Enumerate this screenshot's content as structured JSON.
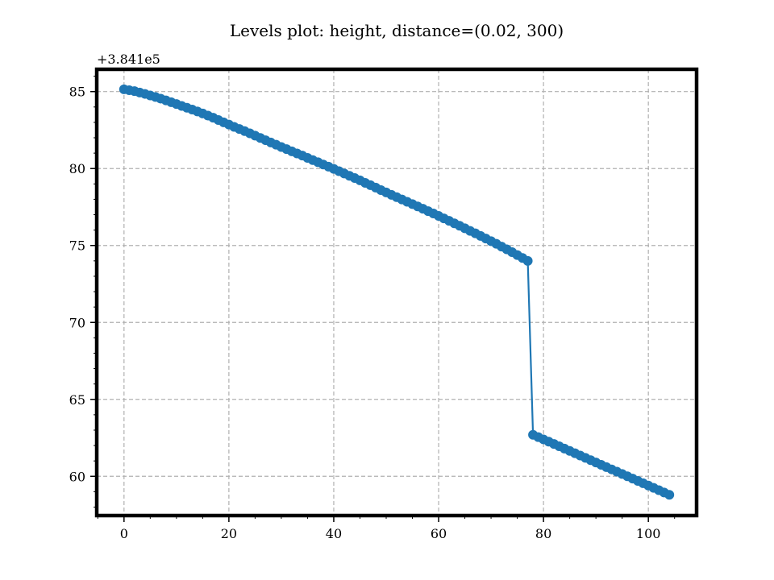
{
  "chart_data": {
    "type": "line",
    "title": "Levels plot: height, distance=(0.02, 300)",
    "xlabel": "",
    "ylabel": "",
    "offset_label": "+3.841e5",
    "xlim": [
      -5.2,
      109.2
    ],
    "ylim": [
      57.45,
      86.45
    ],
    "x_ticks": [
      0,
      20,
      40,
      60,
      80,
      100
    ],
    "x_tick_labels": [
      "0",
      "20",
      "40",
      "60",
      "80",
      "100"
    ],
    "y_ticks": [
      60,
      65,
      70,
      75,
      80,
      85
    ],
    "y_tick_labels": [
      "60",
      "65",
      "70",
      "75",
      "80",
      "85"
    ],
    "grid": true,
    "legend": "none",
    "line_color": "#1f77b4",
    "segments": [
      {
        "x_start": 0,
        "x_end": 77,
        "y_start": 85.15,
        "y_end": 74.0
      },
      {
        "x_start": 78,
        "x_end": 104,
        "y_start": 62.7,
        "y_end": 58.8
      }
    ],
    "series": [
      {
        "x": [
          0,
          1,
          2,
          3,
          4,
          5,
          6,
          7,
          8,
          9,
          10,
          11,
          12,
          13,
          14,
          15,
          16,
          17,
          18,
          19,
          20,
          21,
          22,
          23,
          24,
          25,
          26,
          27,
          28,
          29,
          30,
          31,
          32,
          33,
          34,
          35,
          36,
          37,
          38,
          39,
          40,
          41,
          42,
          43,
          44,
          45,
          46,
          47,
          48,
          49,
          50,
          51,
          52,
          53,
          54,
          55,
          56,
          57,
          58,
          59,
          60,
          61,
          62,
          63,
          64,
          65,
          66,
          67,
          68,
          69,
          70,
          71,
          72,
          73,
          74,
          75,
          76,
          77,
          78,
          79,
          80,
          81,
          82,
          83,
          84,
          85,
          86,
          87,
          88,
          89,
          90,
          91,
          92,
          93,
          94,
          95,
          96,
          97,
          98,
          99,
          100,
          101,
          102,
          103,
          104
        ],
        "y": [
          85.15,
          85.09,
          85.03,
          84.94,
          84.85,
          84.75,
          84.65,
          84.54,
          84.43,
          84.31,
          84.19,
          84.07,
          83.95,
          83.83,
          83.71,
          83.58,
          83.44,
          83.3,
          83.15,
          83.0,
          82.86,
          82.71,
          82.57,
          82.43,
          82.29,
          82.14,
          81.99,
          81.84,
          81.69,
          81.55,
          81.4,
          81.26,
          81.12,
          80.98,
          80.84,
          80.69,
          80.55,
          80.41,
          80.26,
          80.12,
          79.98,
          79.83,
          79.68,
          79.53,
          79.38,
          79.23,
          79.07,
          78.92,
          78.76,
          78.6,
          78.45,
          78.29,
          78.14,
          77.99,
          77.84,
          77.69,
          77.54,
          77.39,
          77.23,
          77.08,
          76.92,
          76.76,
          76.6,
          76.44,
          76.28,
          76.12,
          75.95,
          75.79,
          75.62,
          75.45,
          75.28,
          75.11,
          74.93,
          74.75,
          74.57,
          74.38,
          74.19,
          74.0,
          62.7,
          62.55,
          62.4,
          62.25,
          62.1,
          61.95,
          61.8,
          61.65,
          61.5,
          61.35,
          61.2,
          61.05,
          60.9,
          60.75,
          60.6,
          60.45,
          60.3,
          60.15,
          60.0,
          59.85,
          59.7,
          59.55,
          59.4,
          59.25,
          59.1,
          58.95,
          58.8
        ]
      }
    ]
  }
}
